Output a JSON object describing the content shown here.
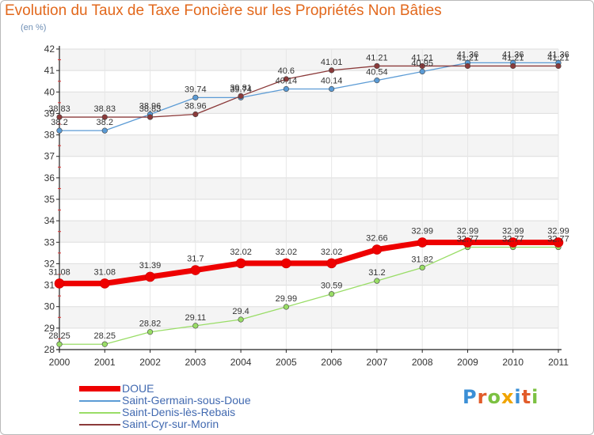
{
  "title": "Evolution du Taux de Taxe Foncière sur les Propriétés Non Bâties",
  "subtitle": "(en %)",
  "brand": "Proxiti",
  "chart_data": {
    "type": "line",
    "title": "Evolution du Taux de Taxe Foncière sur les Propriétés Non Bâties",
    "subtitle": "(en %)",
    "xlabel": "",
    "ylabel": "(en %)",
    "x": [
      "2000",
      "2001",
      "2002",
      "2003",
      "2004",
      "2005",
      "2006",
      "2007",
      "2008",
      "2009",
      "2010",
      "2011"
    ],
    "ylim": [
      28,
      42
    ],
    "yticks": [
      28,
      29,
      30,
      31,
      32,
      33,
      34,
      35,
      36,
      37,
      38,
      39,
      40,
      41,
      42
    ],
    "grid": true,
    "legend_position": "bottom",
    "series": [
      {
        "name": "DOUE",
        "color": "#ee0000",
        "values": [
          31.08,
          31.08,
          31.39,
          31.7,
          32.02,
          32.02,
          32.02,
          32.66,
          32.99,
          32.99,
          32.99,
          32.99
        ],
        "labels": [
          "31.08",
          "31.08",
          "31.39",
          "31.7",
          "32.02",
          "32.02",
          "32.02",
          "32.66",
          "32.99",
          "32.99",
          "32.99",
          "32.99"
        ]
      },
      {
        "name": "Saint-Germain-sous-Doue",
        "color": "#5b9bd5",
        "values": [
          38.2,
          38.2,
          38.96,
          39.74,
          39.74,
          40.14,
          40.14,
          40.54,
          40.95,
          41.36,
          41.36,
          41.36
        ],
        "labels": [
          "38.2",
          "38.2",
          "38.96",
          "39.74",
          "39.74",
          "40.14",
          "40.14",
          "40.54",
          "40.95",
          "41.36",
          "41.36",
          "41.36"
        ]
      },
      {
        "name": "Saint-Denis-lès-Rebais",
        "color": "#99dd66",
        "values": [
          28.25,
          28.25,
          28.82,
          29.11,
          29.4,
          29.99,
          30.59,
          31.2,
          31.82,
          32.77,
          32.77,
          32.77
        ],
        "labels": [
          "28.25",
          "28.25",
          "28.82",
          "29.11",
          "29.4",
          "29.99",
          "30.59",
          "31.2",
          "31.82",
          "32.77",
          "32.77",
          "32.77"
        ]
      },
      {
        "name": "Saint-Cyr-sur-Morin",
        "color": "#8b3a3a",
        "values": [
          38.83,
          38.83,
          38.83,
          38.96,
          39.81,
          40.6,
          41.01,
          41.21,
          41.21,
          41.21,
          41.21,
          41.21
        ],
        "labels": [
          "38.83",
          "38.83",
          "38.83",
          "38.96",
          "39.81",
          "40.6",
          "41.01",
          "41.21",
          "41.21",
          "41.21",
          "41.21",
          "41.21"
        ]
      }
    ]
  }
}
